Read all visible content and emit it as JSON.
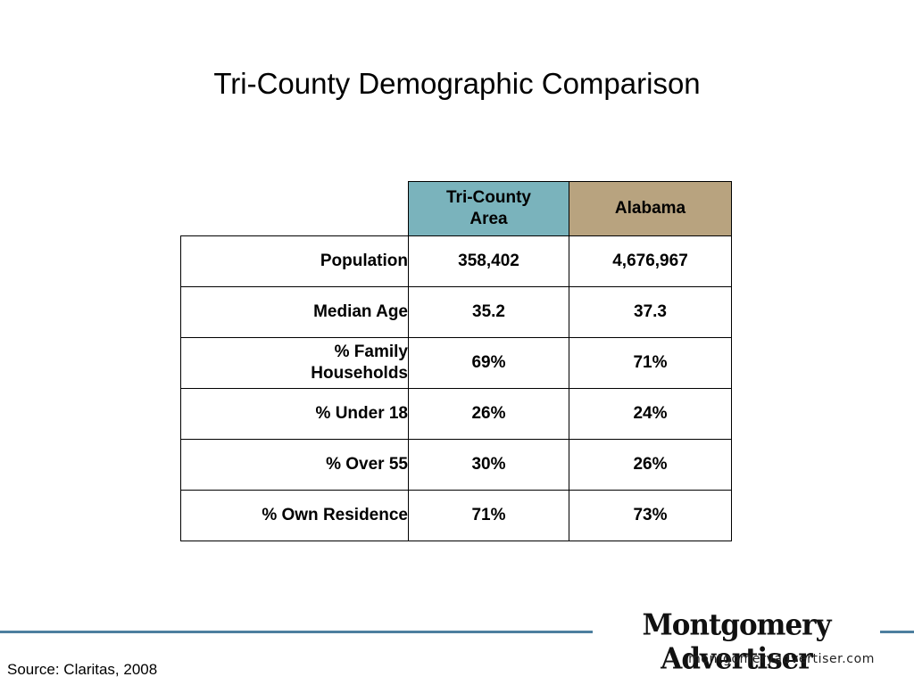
{
  "slide": {
    "title": "Tri-County Demographic Comparison",
    "source": "Source: Claritas, 2008"
  },
  "colors": {
    "tri_county_header": "#7ab3bc",
    "alabama_header": "#b8a37f",
    "footer_line": "#4d7f9f"
  },
  "table": {
    "columns": {
      "tri_county_line1": "Tri-County",
      "tri_county_line2": "Area",
      "alabama": "Alabama"
    },
    "rows": [
      {
        "label": "Population",
        "tri_county": "358,402",
        "alabama": "4,676,967"
      },
      {
        "label": "Median Age",
        "tri_county": "35.2",
        "alabama": "37.3"
      },
      {
        "label_line1": "% Family",
        "label_line2": "Households",
        "tri_county": "69%",
        "alabama": "71%"
      },
      {
        "label": "% Under 18",
        "tri_county": "26%",
        "alabama": "24%"
      },
      {
        "label": "% Over 55",
        "tri_county": "30%",
        "alabama": "26%"
      },
      {
        "label": "% Own Residence",
        "tri_county": "71%",
        "alabama": "73%"
      }
    ]
  },
  "footer": {
    "logo_name": "Montgomery Advertiser",
    "logo_url": "montgomeryadvertiser.com"
  }
}
